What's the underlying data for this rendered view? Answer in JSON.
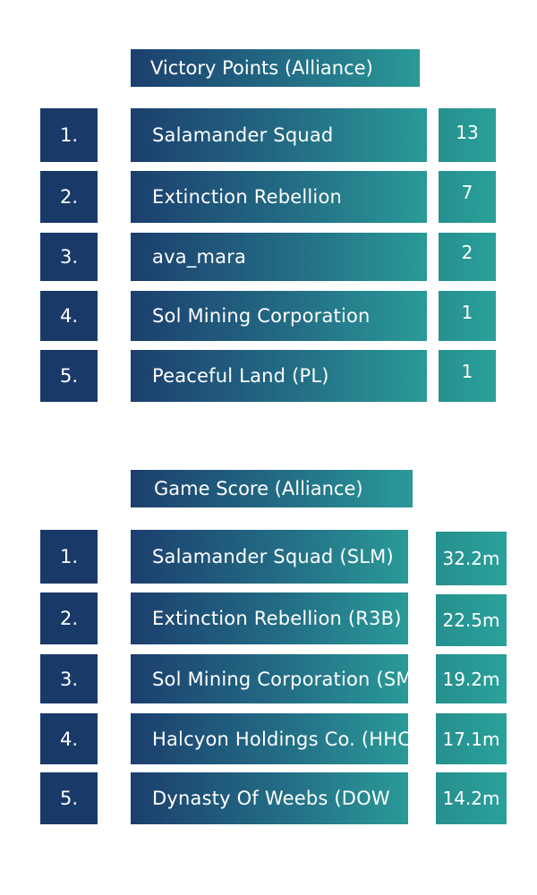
{
  "victory_points": {
    "title": "Victory Points (Alliance)",
    "rows": [
      {
        "rank": "1.",
        "name": "Salamander Squad",
        "value": "13"
      },
      {
        "rank": "2.",
        "name": "Extinction Rebellion",
        "value": "7"
      },
      {
        "rank": "3.",
        "name": "ava_mara",
        "value": "2"
      },
      {
        "rank": "4.",
        "name": "Sol Mining Corporation",
        "value": "1"
      },
      {
        "rank": "5.",
        "name": "Peaceful Land (PL)",
        "value": "1"
      }
    ]
  },
  "game_score": {
    "title": "Game Score (Alliance)",
    "rows": [
      {
        "rank": "1.",
        "name": "Salamander Squad (SLM)",
        "value": "32.2m"
      },
      {
        "rank": "2.",
        "name": "Extinction Rebellion (R3B)",
        "value": "22.5m"
      },
      {
        "rank": "3.",
        "name": "Sol Mining Corporation (SMC)",
        "value": "19.2m"
      },
      {
        "rank": "4.",
        "name": "Halcyon Holdings Co. (HHC)",
        "value": "17.1m"
      },
      {
        "rank": "5.",
        "name": "Dynasty Of Weebs (DOW",
        "value": "14.2m"
      }
    ]
  }
}
